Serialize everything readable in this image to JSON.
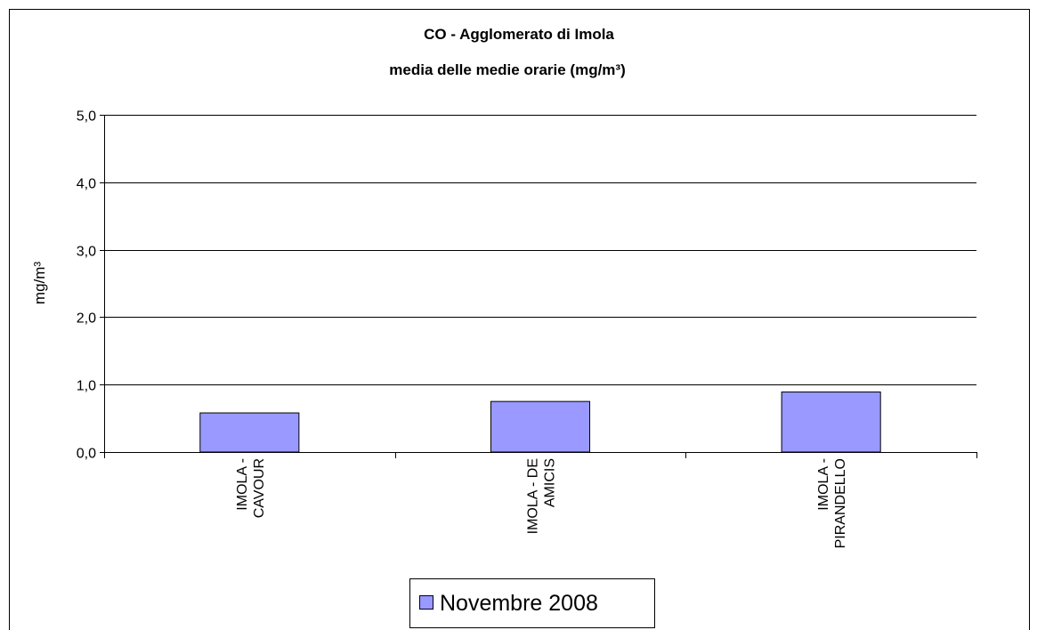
{
  "chart_data": {
    "type": "bar",
    "title": "CO - Agglomerato di Imola",
    "subtitle": "media delle medie orarie  (mg/m³)",
    "y_label": "mg/m³",
    "categories": [
      "IMOLA - CAVOUR",
      "IMOLA - DE AMICIS",
      "IMOLA - PIRANDELLO"
    ],
    "series": [
      {
        "name": "Novembre 2008",
        "color": "#9999ff",
        "values": [
          0.58,
          0.75,
          0.89
        ]
      }
    ],
    "ylim": [
      0,
      5
    ],
    "yticks": [
      {
        "value": 0,
        "label": "0,0"
      },
      {
        "value": 1,
        "label": "1,0"
      },
      {
        "value": 2,
        "label": "2,0"
      },
      {
        "value": 3,
        "label": "3,0"
      },
      {
        "value": 4,
        "label": "4,0"
      },
      {
        "value": 5,
        "label": "5,0"
      }
    ],
    "grid": true,
    "legend": "bottom"
  }
}
